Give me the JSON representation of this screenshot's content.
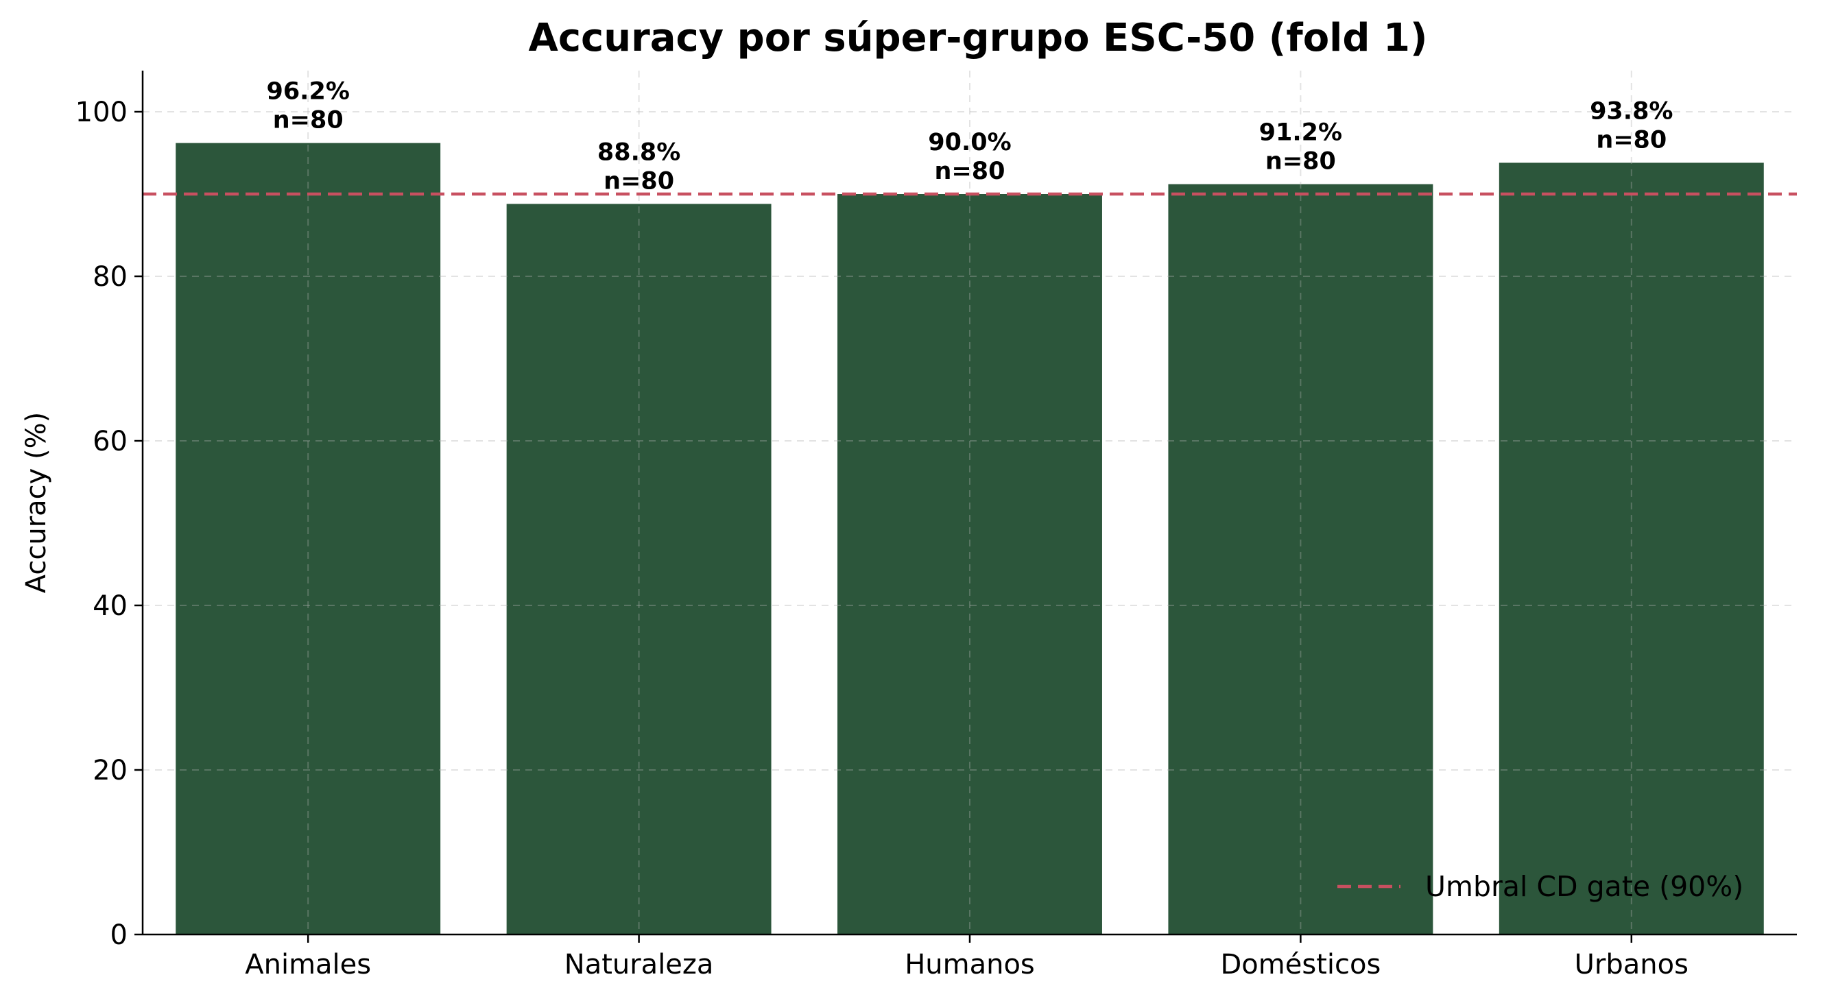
{
  "chart_data": {
    "type": "bar",
    "title": "Accuracy por súper-grupo ESC-50 (fold 1)",
    "xlabel": "",
    "ylabel": "Accuracy (%)",
    "ylim": [
      0,
      105
    ],
    "yticks": [
      0,
      20,
      40,
      60,
      80,
      100
    ],
    "categories": [
      "Animales",
      "Naturaleza",
      "Humanos",
      "Domésticos",
      "Urbanos"
    ],
    "values": [
      96.2,
      88.8,
      90.0,
      91.2,
      93.8
    ],
    "value_labels": [
      "96.2%",
      "88.8%",
      "90.0%",
      "91.2%",
      "93.8%"
    ],
    "n_labels": [
      "n=80",
      "n=80",
      "n=80",
      "n=80",
      "n=80"
    ],
    "bar_color": "#2c563b",
    "threshold": {
      "value": 90,
      "label": "Umbral CD gate (90%)",
      "color": "#c85060",
      "style": "dashed"
    },
    "grid": true,
    "legend_position": "lower-right"
  }
}
